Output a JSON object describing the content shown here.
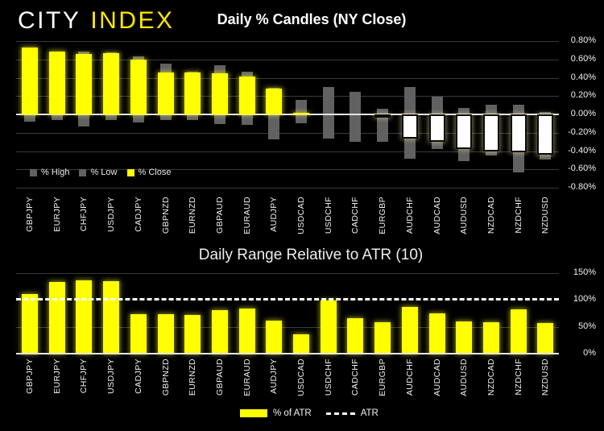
{
  "logo": {
    "city": "CITY",
    "index": "INDEX"
  },
  "colors": {
    "background": "#000000",
    "logo_yellow": "#ffe600",
    "bar_yellow": "#ffff00",
    "wick_gray": "#616161",
    "negative_close_white": "#ffffff",
    "gridline": "#3a3a3a",
    "axis_line": "#e4e4e4"
  },
  "chart_data": [
    {
      "type": "bar",
      "subtype": "daily-percent-candles",
      "title": "Daily % Candles (NY Close)",
      "categories": [
        "GBPJPY",
        "EURJPY",
        "CHFJPY",
        "USDJPY",
        "CADJPY",
        "GBPNZD",
        "EURNZD",
        "GBPAUD",
        "EURAUD",
        "AUDJPY",
        "USDCAD",
        "USDCHF",
        "CADCHF",
        "EURGBP",
        "AUDCHF",
        "AUDCAD",
        "AUDUSD",
        "NZDCAD",
        "NZDCHF",
        "NZDUSD"
      ],
      "series": [
        {
          "name": "% High",
          "color": "#616161",
          "values": [
            0.73,
            0.69,
            0.69,
            0.68,
            0.63,
            0.55,
            0.47,
            0.54,
            0.47,
            0.29,
            0.16,
            0.3,
            0.25,
            0.06,
            0.3,
            0.19,
            0.07,
            0.11,
            0.11,
            0.03
          ]
        },
        {
          "name": "% Low",
          "color": "#616161",
          "values": [
            -0.08,
            -0.06,
            -0.13,
            -0.06,
            -0.09,
            -0.06,
            -0.06,
            -0.11,
            -0.11,
            -0.27,
            -0.1,
            -0.26,
            -0.3,
            -0.3,
            -0.48,
            -0.38,
            -0.51,
            -0.45,
            -0.63,
            -0.49
          ]
        },
        {
          "name": "% Close",
          "color": "#ffff00",
          "negative_color": "#ffffff",
          "values": [
            0.73,
            0.69,
            0.66,
            0.67,
            0.6,
            0.46,
            0.46,
            0.45,
            0.41,
            0.28,
            0.02,
            0.0,
            0.0,
            -0.03,
            -0.26,
            -0.3,
            -0.38,
            -0.4,
            -0.41,
            -0.44
          ]
        }
      ],
      "ylim": [
        -0.8,
        0.8
      ],
      "yticks": [
        {
          "value": 0.8,
          "label": "0.80%"
        },
        {
          "value": 0.6,
          "label": "0.60%"
        },
        {
          "value": 0.4,
          "label": "0.40%"
        },
        {
          "value": 0.2,
          "label": "0.20%"
        },
        {
          "value": 0.0,
          "label": "0.00%"
        },
        {
          "value": -0.2,
          "label": "-0.20%"
        },
        {
          "value": -0.4,
          "label": "-0.40%"
        },
        {
          "value": -0.6,
          "label": "-0.60%"
        },
        {
          "value": -0.8,
          "label": "-0.80%"
        }
      ],
      "zero_line": true,
      "grid": true,
      "legend_position": "bottom-left"
    },
    {
      "type": "bar",
      "title": "Daily Range Relative to ATR (10)",
      "categories": [
        "GBPJPY",
        "EURJPY",
        "CHFJPY",
        "USDJPY",
        "CADJPY",
        "GBPNZD",
        "EURNZD",
        "GBPAUD",
        "EURAUD",
        "AUDJPY",
        "USDCAD",
        "USDCHF",
        "CADCHF",
        "EURGBP",
        "AUDCHF",
        "AUDCAD",
        "AUDUSD",
        "NZDCAD",
        "NZDCHF",
        "NZDUSD"
      ],
      "series": [
        {
          "name": "% of ATR",
          "color": "#ffff00",
          "values": [
            110,
            133,
            136,
            135,
            73,
            73,
            72,
            81,
            83,
            62,
            36,
            98,
            65,
            58,
            87,
            75,
            60,
            58,
            82,
            57
          ]
        }
      ],
      "reference_line": {
        "name": "ATR",
        "value": 100,
        "style": "dashed",
        "color": "#ffffff"
      },
      "ylim": [
        0,
        160
      ],
      "yticks": [
        {
          "value": 150,
          "label": "150%"
        },
        {
          "value": 100,
          "label": "100%"
        },
        {
          "value": 50,
          "label": "50%"
        },
        {
          "value": 0,
          "label": "0%"
        }
      ],
      "legend": [
        "% of ATR",
        "ATR"
      ],
      "legend_position": "bottom-center",
      "grid": true
    }
  ]
}
